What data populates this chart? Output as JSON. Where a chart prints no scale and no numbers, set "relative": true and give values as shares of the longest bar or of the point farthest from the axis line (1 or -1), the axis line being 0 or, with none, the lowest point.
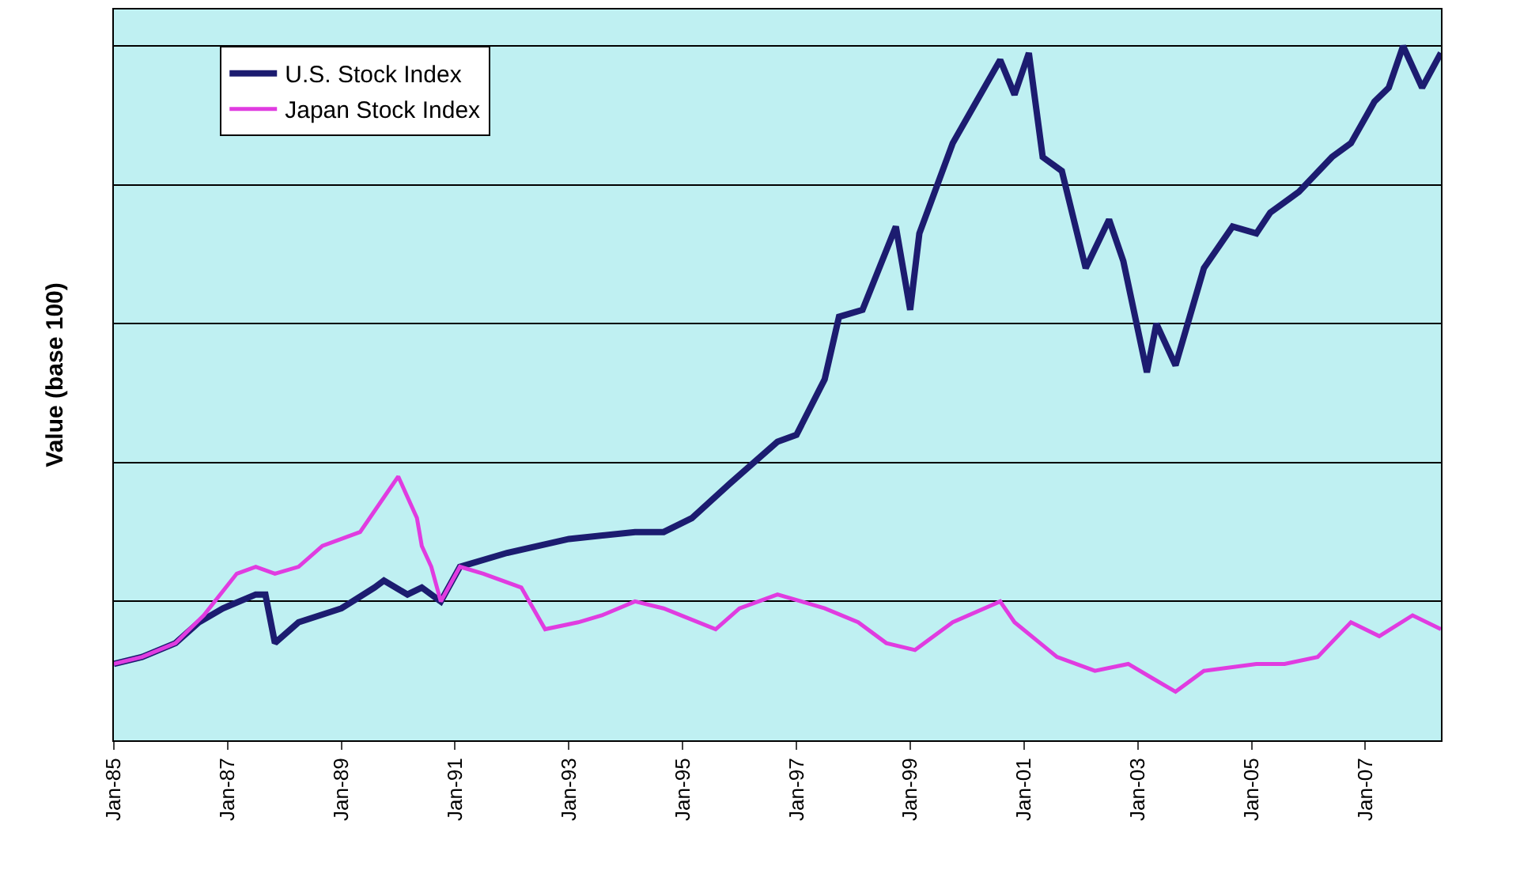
{
  "chart_data": {
    "type": "line",
    "ylabel": "Value (base 100)",
    "relative": true,
    "grid": true,
    "legend": "top left",
    "marker": "none",
    "line_style": "solid",
    "xlim": [
      "1985-01",
      "2008-05"
    ],
    "xticks": [
      {
        "value": "1985-01",
        "label": "Jan-85"
      },
      {
        "value": "1987-01",
        "label": "Jan-87"
      },
      {
        "value": "1989-01",
        "label": "Jan-89"
      },
      {
        "value": "1991-01",
        "label": "Jan-91"
      },
      {
        "value": "1993-01",
        "label": "Jan-93"
      },
      {
        "value": "1995-01",
        "label": "Jan-95"
      },
      {
        "value": "1997-01",
        "label": "Jan-97"
      },
      {
        "value": "1999-01",
        "label": "Jan-99"
      },
      {
        "value": "2001-01",
        "label": "Jan-01"
      },
      {
        "value": "2003-01",
        "label": "Jan-03"
      },
      {
        "value": "2005-01",
        "label": "Jan-05"
      },
      {
        "value": "2007-01",
        "label": "Jan-07"
      }
    ],
    "series": [
      {
        "name": "U.S. Stock Index",
        "color": "#1c1c70",
        "x": [
          "1985-01",
          "1985-07",
          "1986-02",
          "1986-07",
          "1986-12",
          "1987-07",
          "1987-09",
          "1987-11",
          "1988-04",
          "1989-01",
          "1989-08",
          "1989-10",
          "1990-03",
          "1990-06",
          "1990-10",
          "1991-02",
          "1991-12",
          "1993-01",
          "1994-03",
          "1994-09",
          "1995-03",
          "1995-11",
          "1996-09",
          "1997-01",
          "1997-07",
          "1997-10",
          "1998-03",
          "1998-10",
          "1999-01",
          "1999-03",
          "1999-10",
          "2000-03",
          "2000-08",
          "2000-11",
          "2001-02",
          "2001-05",
          "2001-09",
          "2002-02",
          "2002-07",
          "2002-10",
          "2003-03",
          "2003-05",
          "2003-09",
          "2004-03",
          "2004-09",
          "2005-02",
          "2005-05",
          "2005-11",
          "2006-06",
          "2006-10",
          "2007-03",
          "2007-06",
          "2007-09",
          "2008-01",
          "2008-05"
        ],
        "values": [
          0.11,
          0.12,
          0.14,
          0.17,
          0.19,
          0.21,
          0.21,
          0.14,
          0.17,
          0.19,
          0.22,
          0.23,
          0.21,
          0.22,
          0.2,
          0.25,
          0.27,
          0.29,
          0.3,
          0.3,
          0.32,
          0.37,
          0.43,
          0.44,
          0.52,
          0.61,
          0.62,
          0.74,
          0.62,
          0.73,
          0.86,
          0.92,
          0.98,
          0.93,
          0.99,
          0.84,
          0.82,
          0.68,
          0.75,
          0.69,
          0.53,
          0.6,
          0.54,
          0.68,
          0.74,
          0.73,
          0.76,
          0.79,
          0.84,
          0.86,
          0.92,
          0.94,
          1,
          0.94,
          0.99
        ]
      },
      {
        "name": "Japan Stock Index",
        "color": "#e03ce0",
        "x": [
          "1985-01",
          "1985-07",
          "1986-02",
          "1986-08",
          "1987-03",
          "1987-07",
          "1987-11",
          "1988-04",
          "1988-09",
          "1989-05",
          "1989-10",
          "1990-01",
          "1990-05",
          "1990-06",
          "1990-08",
          "1990-10",
          "1991-02",
          "1991-07",
          "1992-03",
          "1992-08",
          "1993-03",
          "1993-08",
          "1994-03",
          "1994-09",
          "1995-08",
          "1996-01",
          "1996-09",
          "1997-02",
          "1997-07",
          "1998-02",
          "1998-08",
          "1999-02",
          "1999-10",
          "2000-08",
          "2000-11",
          "2001-08",
          "2002-04",
          "2002-11",
          "2003-04",
          "2003-09",
          "2004-03",
          "2005-02",
          "2005-08",
          "2006-03",
          "2006-10",
          "2007-04",
          "2007-11",
          "2008-05"
        ],
        "values": [
          0.11,
          0.12,
          0.14,
          0.18,
          0.24,
          0.25,
          0.24,
          0.25,
          0.28,
          0.3,
          0.35,
          0.38,
          0.32,
          0.28,
          0.25,
          0.2,
          0.25,
          0.24,
          0.22,
          0.16,
          0.17,
          0.18,
          0.2,
          0.19,
          0.16,
          0.19,
          0.21,
          0.2,
          0.19,
          0.17,
          0.14,
          0.13,
          0.17,
          0.2,
          0.17,
          0.12,
          0.1,
          0.11,
          0.09,
          0.07,
          0.1,
          0.11,
          0.11,
          0.12,
          0.17,
          0.15,
          0.18,
          0.16
        ]
      }
    ]
  }
}
